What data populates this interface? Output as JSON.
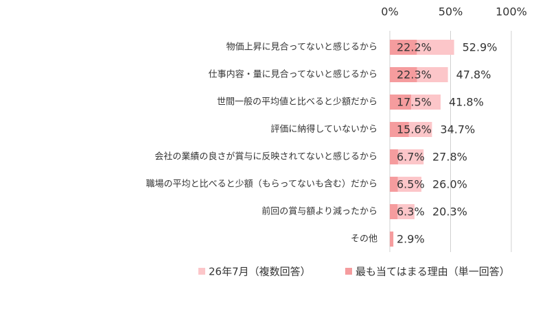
{
  "chart_data": {
    "type": "bar",
    "orientation": "horizontal",
    "categories": [
      "物価上昇に見合ってないと感じるから",
      "仕事内容・量に見合ってないと感じるから",
      "世間一般の平均値と比べると少額だから",
      "評価に納得していないから",
      "会社の業績の良さが賞与に反映されてないと感じるから",
      "職場の平均と比べると少額（もらってないも含む）だから",
      "前回の賞与額より減ったから",
      "その他"
    ],
    "series": [
      {
        "name": "26年7月（複数回答）",
        "color": "#fcc6c9",
        "values": [
          52.9,
          47.8,
          41.8,
          34.7,
          27.8,
          26.0,
          20.3,
          null
        ],
        "value_labels": [
          "52.9%",
          "47.8%",
          "41.8%",
          "34.7%",
          "27.8%",
          "26.0%",
          "20.3%",
          null
        ]
      },
      {
        "name": "最も当てはまる理由（単一回答）",
        "color": "#f59c9e",
        "values": [
          22.2,
          22.3,
          17.5,
          15.6,
          6.7,
          6.5,
          6.3,
          2.9
        ],
        "value_labels": [
          "22.2%",
          "22.3%",
          "17.5%",
          "15.6%",
          "6.7%",
          "6.5%",
          "6.3%",
          "2.9%"
        ]
      }
    ],
    "xlim": [
      0,
      100
    ],
    "xticks": [
      {
        "value": 0,
        "label": "0%"
      },
      {
        "value": 50,
        "label": "50%"
      },
      {
        "value": 100,
        "label": "100%"
      }
    ],
    "grid": true,
    "legend": "bottom"
  }
}
